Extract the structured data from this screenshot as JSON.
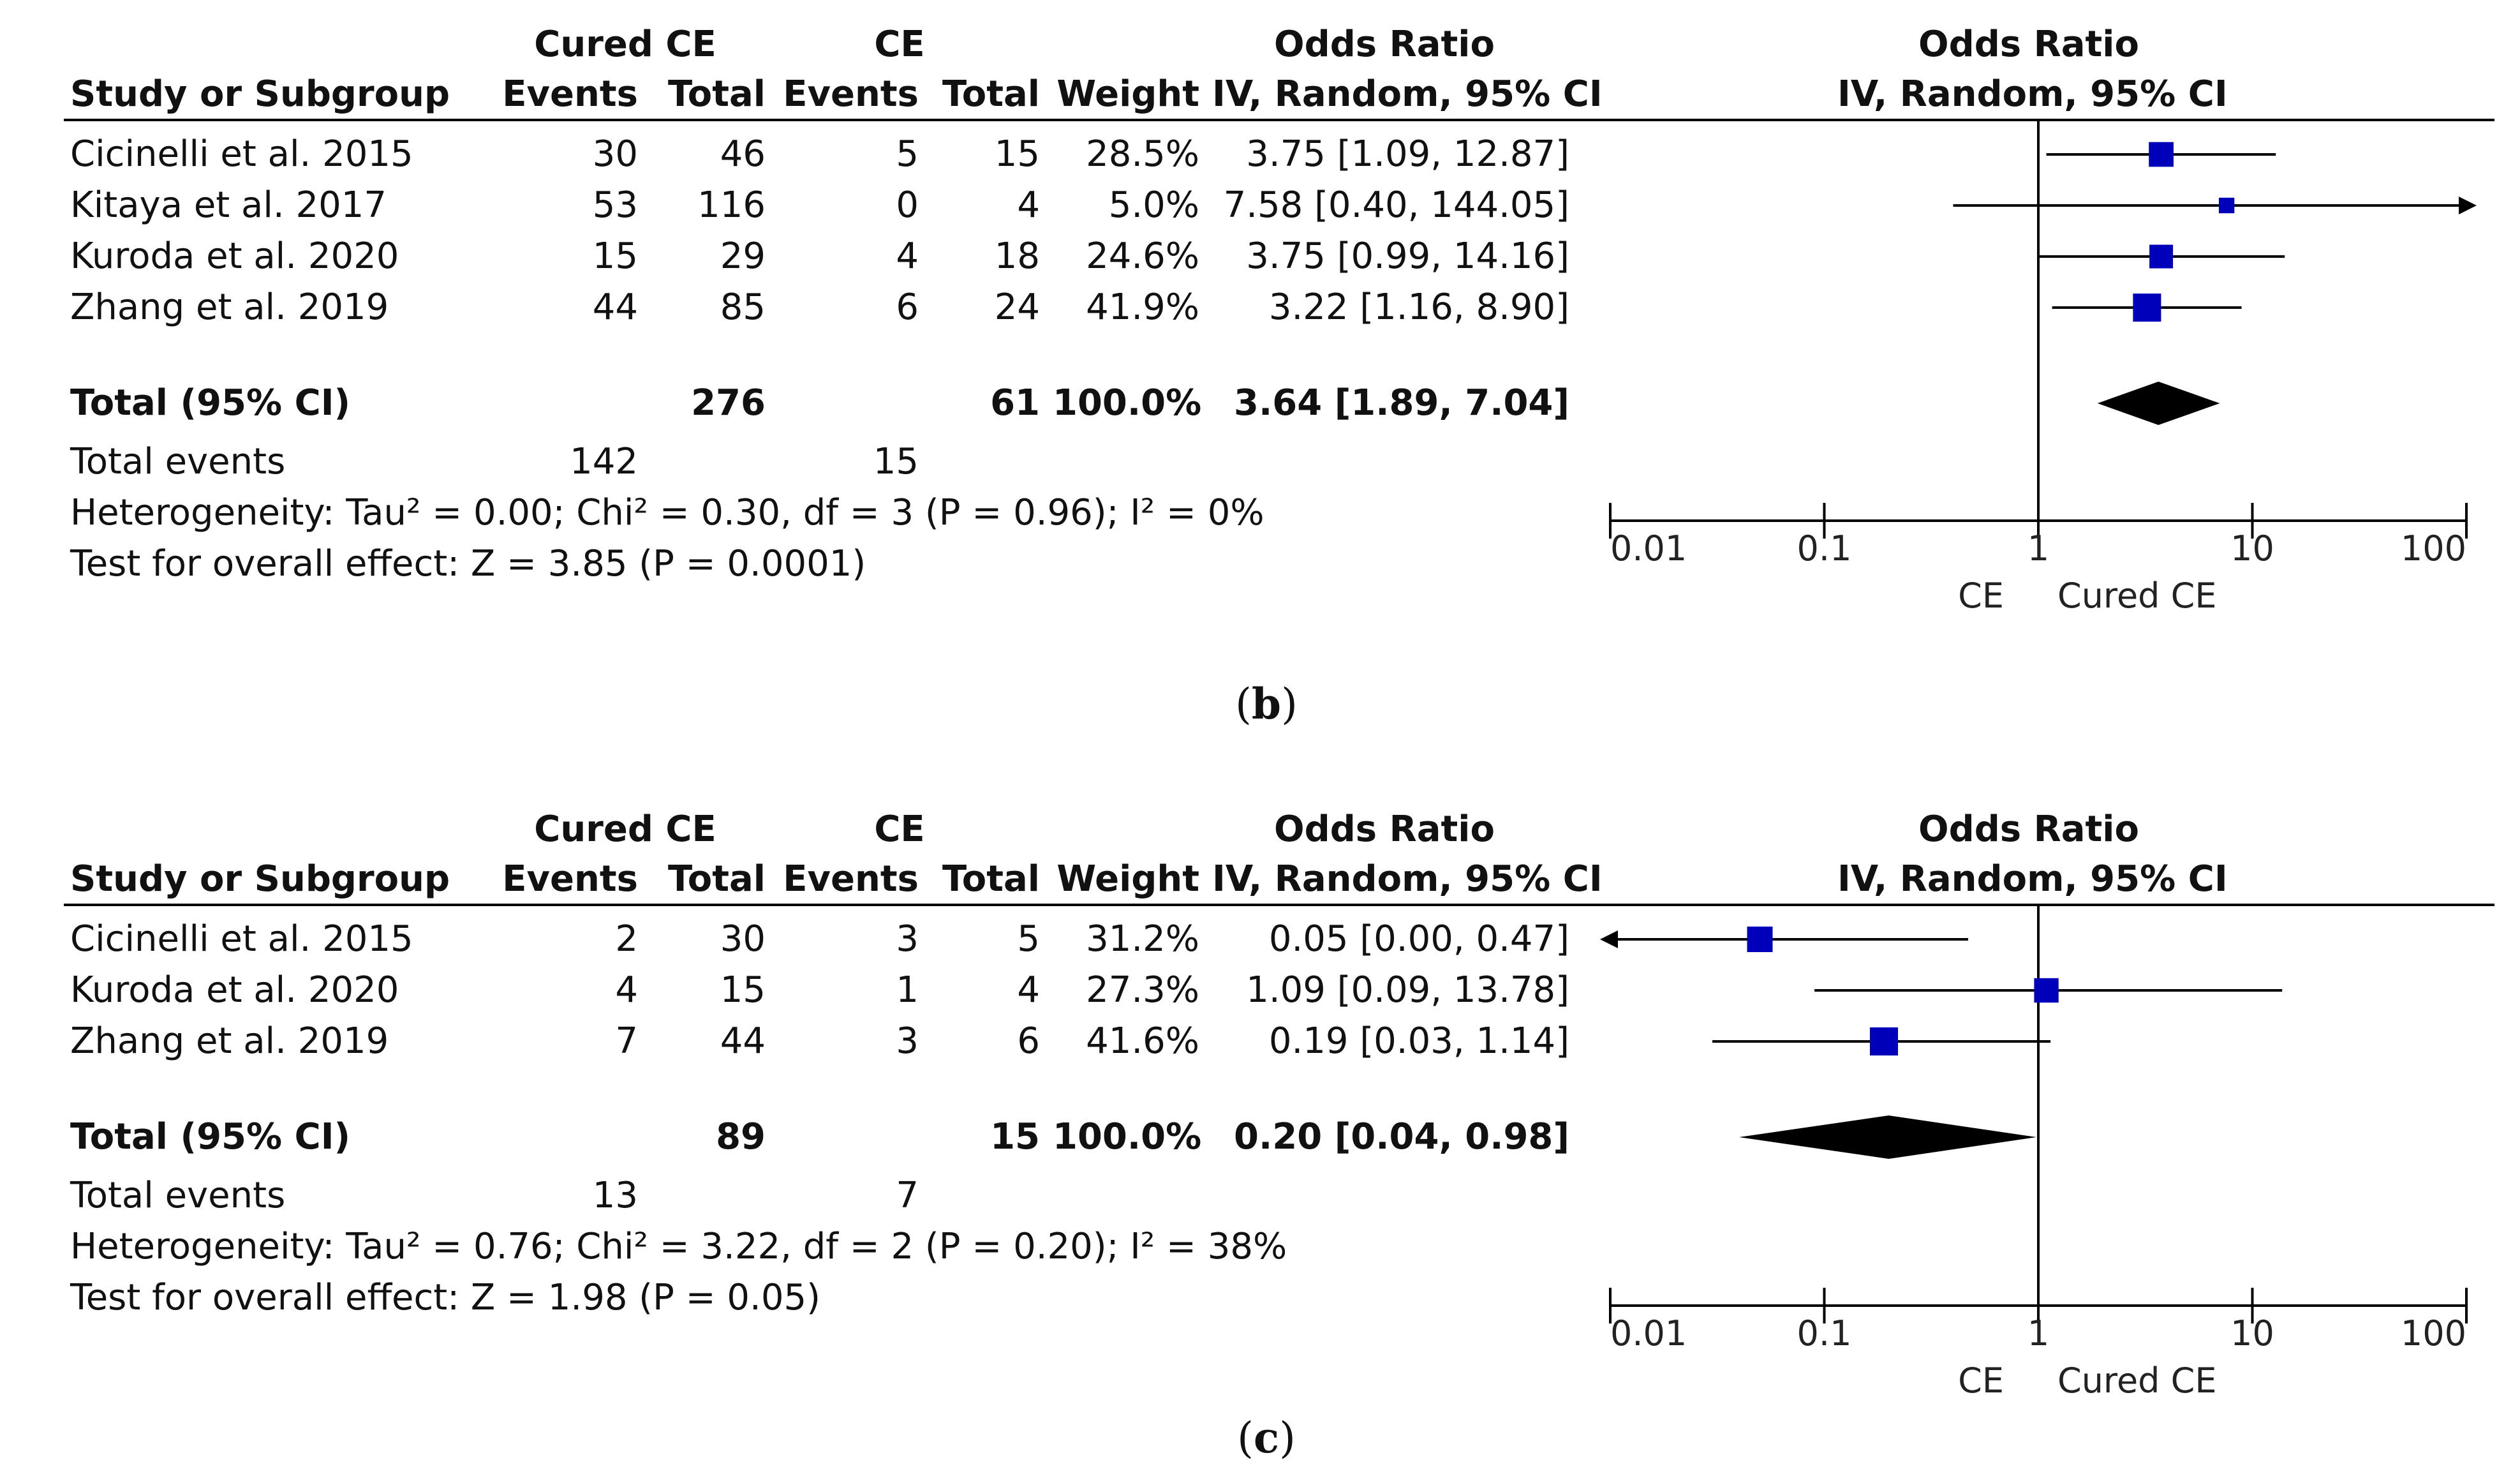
{
  "colors": {
    "marker": "#0000bb",
    "ink": "#000000",
    "text": "#111111"
  },
  "header": {
    "study": "Study or Subgroup",
    "exp_group": "Cured CE",
    "ctl_group": "CE",
    "events": "Events",
    "total": "Total",
    "weight": "Weight",
    "or_title": "Odds Ratio",
    "or_method": "IV, Random, 95% CI",
    "plot_title": "Odds Ratio",
    "plot_method": "IV, Random, 95% CI"
  },
  "panels": [
    {
      "caption_letter": "b",
      "studies": [
        {
          "name": "Cicinelli et al. 2015",
          "e1": "30",
          "n1": "46",
          "e2": "5",
          "n2": "15",
          "weight": "28.5%",
          "ci": "3.75 [1.09, 12.87]"
        },
        {
          "name": "Kitaya et al. 2017",
          "e1": "53",
          "n1": "116",
          "e2": "0",
          "n2": "4",
          "weight": "5.0%",
          "ci": "7.58 [0.40, 144.05]"
        },
        {
          "name": "Kuroda et al. 2020",
          "e1": "15",
          "n1": "29",
          "e2": "4",
          "n2": "18",
          "weight": "24.6%",
          "ci": "3.75 [0.99, 14.16]"
        },
        {
          "name": "Zhang et al. 2019",
          "e1": "44",
          "n1": "85",
          "e2": "6",
          "n2": "24",
          "weight": "41.9%",
          "ci": "3.22 [1.16, 8.90]"
        }
      ],
      "total": {
        "label": "Total (95% CI)",
        "n1": "276",
        "n2": "61",
        "weight": "100.0%",
        "ci": "3.64 [1.89, 7.04]"
      },
      "events": {
        "label": "Total events",
        "e1": "142",
        "e2": "15"
      },
      "heterogeneity": "Heterogeneity: Tau² = 0.00; Chi² = 0.30, df = 3 (P = 0.96); I² = 0%",
      "overall": "Test for overall effect: Z = 3.85 (P = 0.0001)",
      "axis": {
        "ticks": [
          "0.01",
          "0.1",
          "1",
          "10",
          "100"
        ],
        "left_label": "CE",
        "right_label": "Cured CE"
      }
    },
    {
      "caption_letter": "c",
      "studies": [
        {
          "name": "Cicinelli et al. 2015",
          "e1": "2",
          "n1": "30",
          "e2": "3",
          "n2": "5",
          "weight": "31.2%",
          "ci": "0.05 [0.00, 0.47]"
        },
        {
          "name": "Kuroda et al. 2020",
          "e1": "4",
          "n1": "15",
          "e2": "1",
          "n2": "4",
          "weight": "27.3%",
          "ci": "1.09 [0.09, 13.78]"
        },
        {
          "name": "Zhang et al. 2019",
          "e1": "7",
          "n1": "44",
          "e2": "3",
          "n2": "6",
          "weight": "41.6%",
          "ci": "0.19 [0.03, 1.14]"
        }
      ],
      "total": {
        "label": "Total (95% CI)",
        "n1": "89",
        "n2": "15",
        "weight": "100.0%",
        "ci": "0.20 [0.04, 0.98]"
      },
      "events": {
        "label": "Total events",
        "e1": "13",
        "e2": "7"
      },
      "heterogeneity": "Heterogeneity: Tau² = 0.76; Chi² = 3.22, df = 2 (P = 0.20); I² = 38%",
      "overall": "Test for overall effect: Z = 1.98 (P = 0.05)",
      "axis": {
        "ticks": [
          "0.01",
          "0.1",
          "1",
          "10",
          "100"
        ],
        "left_label": "CE",
        "right_label": "Cured CE"
      }
    }
  ],
  "chart_data": [
    {
      "type": "forest",
      "scale": "log10",
      "xlim": [
        0.01,
        100
      ],
      "reference_line": 1,
      "x_ticks": [
        0.01,
        0.1,
        1,
        10,
        100
      ],
      "xlabel_left": "CE",
      "xlabel_right": "Cured CE",
      "studies": [
        {
          "name": "Cicinelli et al. 2015",
          "or": 3.75,
          "lower": 1.09,
          "upper": 12.87,
          "weight": 28.5
        },
        {
          "name": "Kitaya et al. 2017",
          "or": 7.58,
          "lower": 0.4,
          "upper": 144.05,
          "weight": 5.0
        },
        {
          "name": "Kuroda et al. 2020",
          "or": 3.75,
          "lower": 0.99,
          "upper": 14.16,
          "weight": 24.6
        },
        {
          "name": "Zhang et al. 2019",
          "or": 3.22,
          "lower": 1.16,
          "upper": 8.9,
          "weight": 41.9
        }
      ],
      "pooled": {
        "or": 3.64,
        "lower": 1.89,
        "upper": 7.04
      }
    },
    {
      "type": "forest",
      "scale": "log10",
      "xlim": [
        0.01,
        100
      ],
      "reference_line": 1,
      "x_ticks": [
        0.01,
        0.1,
        1,
        10,
        100
      ],
      "xlabel_left": "CE",
      "xlabel_right": "Cured CE",
      "studies": [
        {
          "name": "Cicinelli et al. 2015",
          "or": 0.05,
          "lower": 0.0,
          "upper": 0.47,
          "weight": 31.2
        },
        {
          "name": "Kuroda et al. 2020",
          "or": 1.09,
          "lower": 0.09,
          "upper": 13.78,
          "weight": 27.3
        },
        {
          "name": "Zhang et al. 2019",
          "or": 0.19,
          "lower": 0.03,
          "upper": 1.14,
          "weight": 41.6
        }
      ],
      "pooled": {
        "or": 0.2,
        "lower": 0.04,
        "upper": 0.98
      }
    }
  ]
}
